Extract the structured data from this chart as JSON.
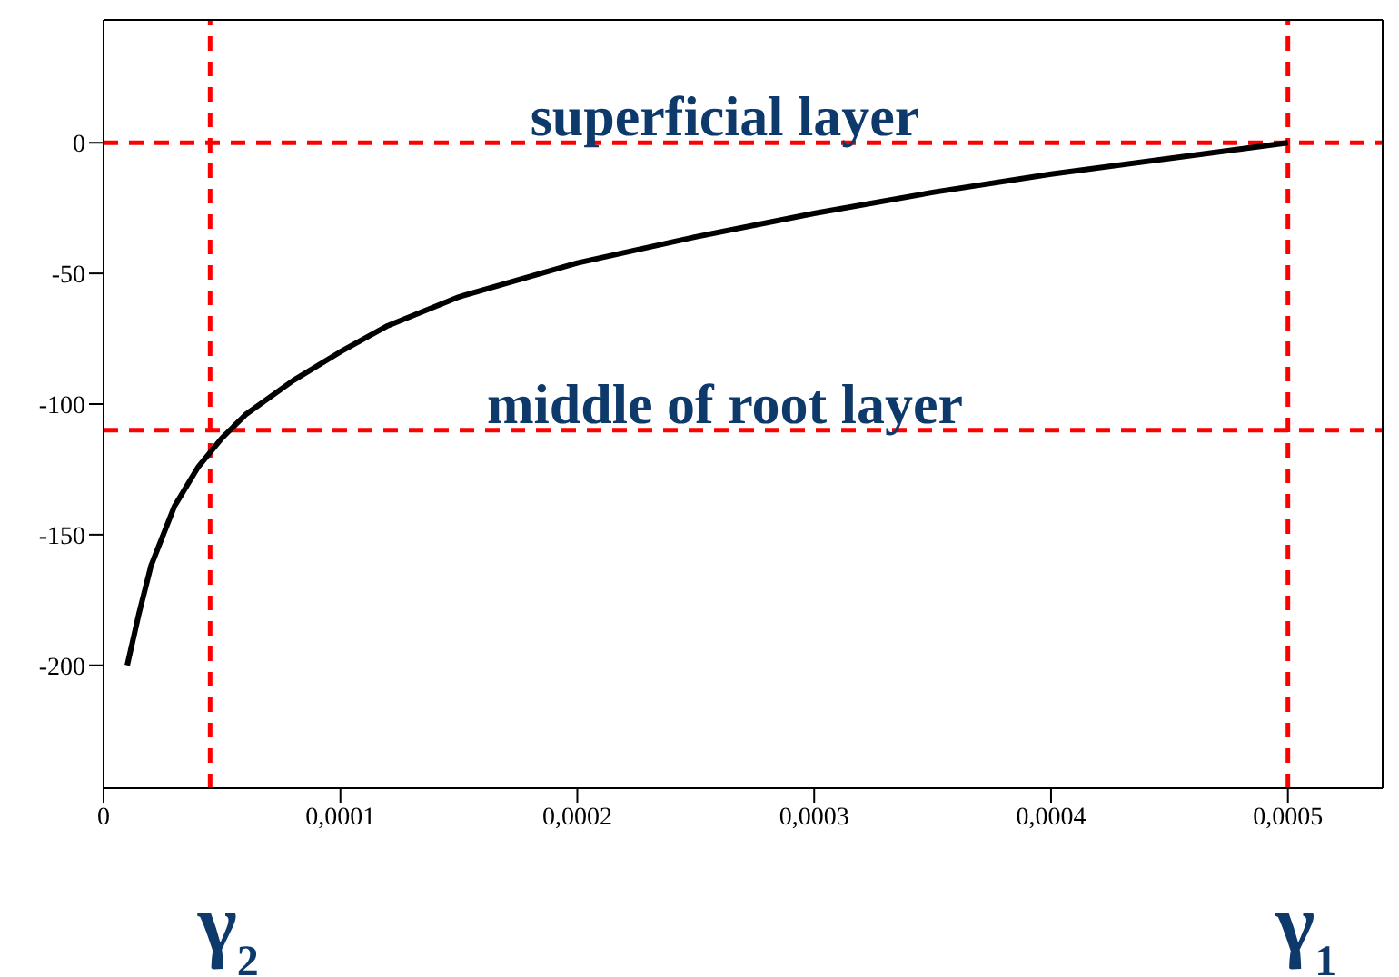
{
  "chart_data": {
    "type": "line",
    "x": [
      1e-05,
      1.5e-05,
      2e-05,
      3e-05,
      4e-05,
      5e-05,
      6e-05,
      8e-05,
      0.0001,
      0.00012,
      0.00015,
      0.0002,
      0.00025,
      0.0003,
      0.00035,
      0.0004,
      0.00045,
      0.0005
    ],
    "series": [
      {
        "color": "#000000",
        "values": [
          -200,
          -180,
          -162,
          -139,
          -124,
          -113,
          -104,
          -91,
          -80,
          -70,
          -59,
          -46,
          -36,
          -27,
          -19,
          -12,
          -6,
          0
        ]
      }
    ],
    "xlim": [
      0,
      0.00054
    ],
    "xticks": [
      0,
      {
        "value": 0.0001,
        "label": "0,0001"
      },
      {
        "value": 0.0002,
        "label": "0,0002"
      },
      {
        "value": 0.0003,
        "label": "0,0003"
      },
      {
        "value": 0.0004,
        "label": "0,0004"
      },
      {
        "value": 0.0005,
        "label": "0,0005"
      }
    ],
    "ylim": [
      -247,
      47
    ],
    "yticks": [
      -200,
      -150,
      -100,
      -50,
      0
    ],
    "ref_lines": [
      {
        "axis": "y",
        "value": 0,
        "label": "superficial layer",
        "color": "#ff0000",
        "line_style": "dashed"
      },
      {
        "axis": "y",
        "value": -110,
        "label": "middle of root layer",
        "color": "#ff0000",
        "line_style": "dashed"
      },
      {
        "axis": "x",
        "value": 4.5e-05,
        "label": "γ$_{2}$",
        "color": "#ff0000",
        "line_style": "dashed"
      },
      {
        "axis": "x",
        "value": 0.0005,
        "label": "γ$_{1}$",
        "color": "#ff0000",
        "line_style": "dashed"
      }
    ],
    "grid": false,
    "legend": false,
    "marker": "none",
    "line_style": "solid"
  }
}
